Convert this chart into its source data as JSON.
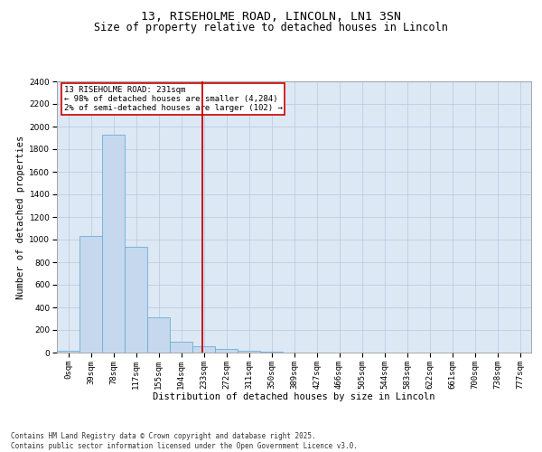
{
  "title1": "13, RISEHOLME ROAD, LINCOLN, LN1 3SN",
  "title2": "Size of property relative to detached houses in Lincoln",
  "xlabel": "Distribution of detached houses by size in Lincoln",
  "ylabel": "Number of detached properties",
  "bar_labels": [
    "0sqm",
    "39sqm",
    "78sqm",
    "117sqm",
    "155sqm",
    "194sqm",
    "233sqm",
    "272sqm",
    "311sqm",
    "350sqm",
    "389sqm",
    "427sqm",
    "466sqm",
    "505sqm",
    "544sqm",
    "583sqm",
    "622sqm",
    "661sqm",
    "700sqm",
    "738sqm",
    "777sqm"
  ],
  "bar_values": [
    20,
    1030,
    1930,
    940,
    310,
    100,
    55,
    35,
    15,
    5,
    3,
    2,
    1,
    1,
    0,
    0,
    0,
    0,
    0,
    0,
    0
  ],
  "bar_color": "#c5d8ee",
  "bar_edge_color": "#6baed6",
  "property_line_x": 5.92,
  "property_line_color": "#cc0000",
  "annotation_text": "13 RISEHOLME ROAD: 231sqm\n← 98% of detached houses are smaller (4,284)\n2% of semi-detached houses are larger (102) →",
  "annotation_box_color": "#cc0000",
  "ylim": [
    0,
    2400
  ],
  "yticks": [
    0,
    200,
    400,
    600,
    800,
    1000,
    1200,
    1400,
    1600,
    1800,
    2000,
    2200,
    2400
  ],
  "background_color": "#dde8f5",
  "footer_text": "Contains HM Land Registry data © Crown copyright and database right 2025.\nContains public sector information licensed under the Open Government Licence v3.0.",
  "title_fontsize": 9.5,
  "subtitle_fontsize": 8.5,
  "axis_label_fontsize": 7.5,
  "tick_fontsize": 6.5,
  "annotation_fontsize": 6.5,
  "footer_fontsize": 5.5
}
